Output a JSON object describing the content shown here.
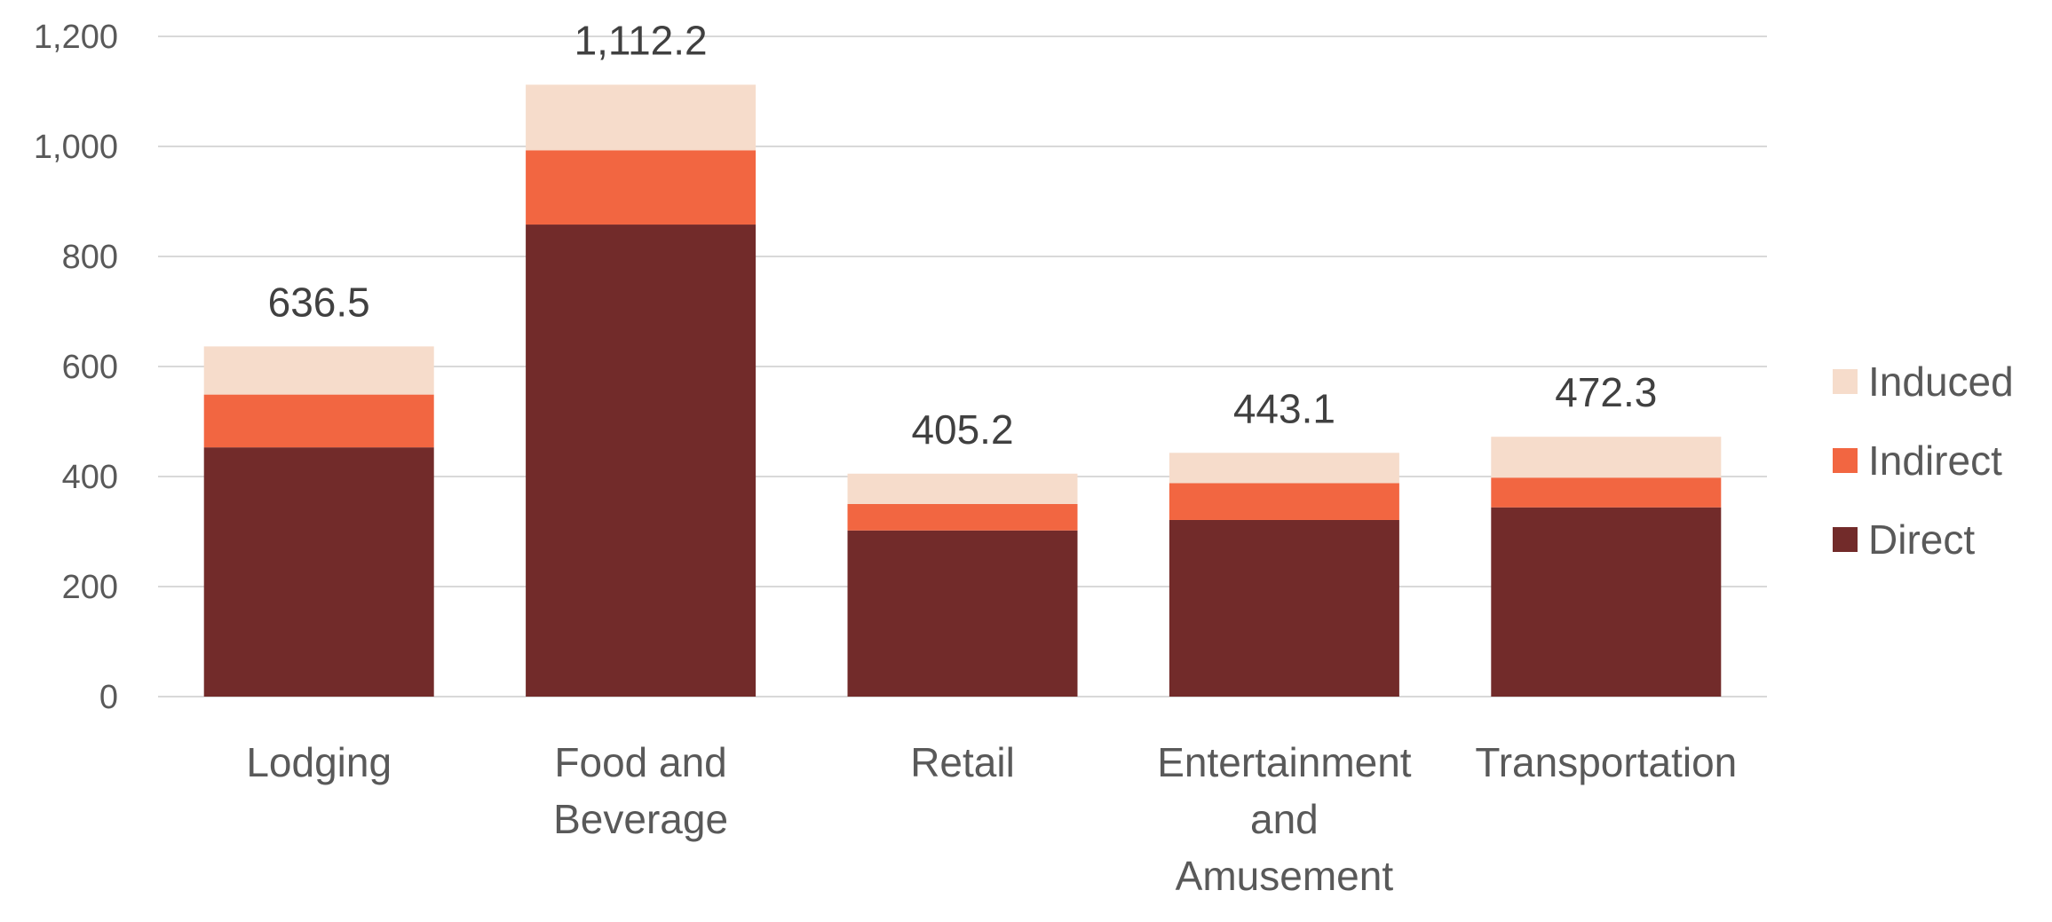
{
  "chart_data": {
    "type": "bar",
    "stacked": true,
    "categories": [
      [
        "Lodging"
      ],
      [
        "Food and",
        "Beverage"
      ],
      [
        "Retail"
      ],
      [
        "Entertainment",
        "and",
        "Amusement"
      ],
      [
        "Transportation"
      ]
    ],
    "series": [
      {
        "name": "Direct",
        "color": "#722b2a",
        "values": [
          453,
          858,
          302,
          321,
          344
        ]
      },
      {
        "name": "Indirect",
        "color": "#f26641",
        "values": [
          96,
          135,
          48,
          67,
          54
        ]
      },
      {
        "name": "Induced",
        "color": "#f6dccb",
        "values": [
          87.5,
          119.2,
          55.2,
          55.1,
          74.3
        ]
      }
    ],
    "totals": [
      "636.5",
      "1,112.2",
      "405.2",
      "443.1",
      "472.3"
    ],
    "yticks": [
      "0",
      "200",
      "400",
      "600",
      "800",
      "1,000",
      "1,200"
    ],
    "ylim": [
      0,
      1200
    ],
    "grid": true,
    "legend_position": "right",
    "legend_order": [
      "Induced",
      "Indirect",
      "Direct"
    ]
  }
}
